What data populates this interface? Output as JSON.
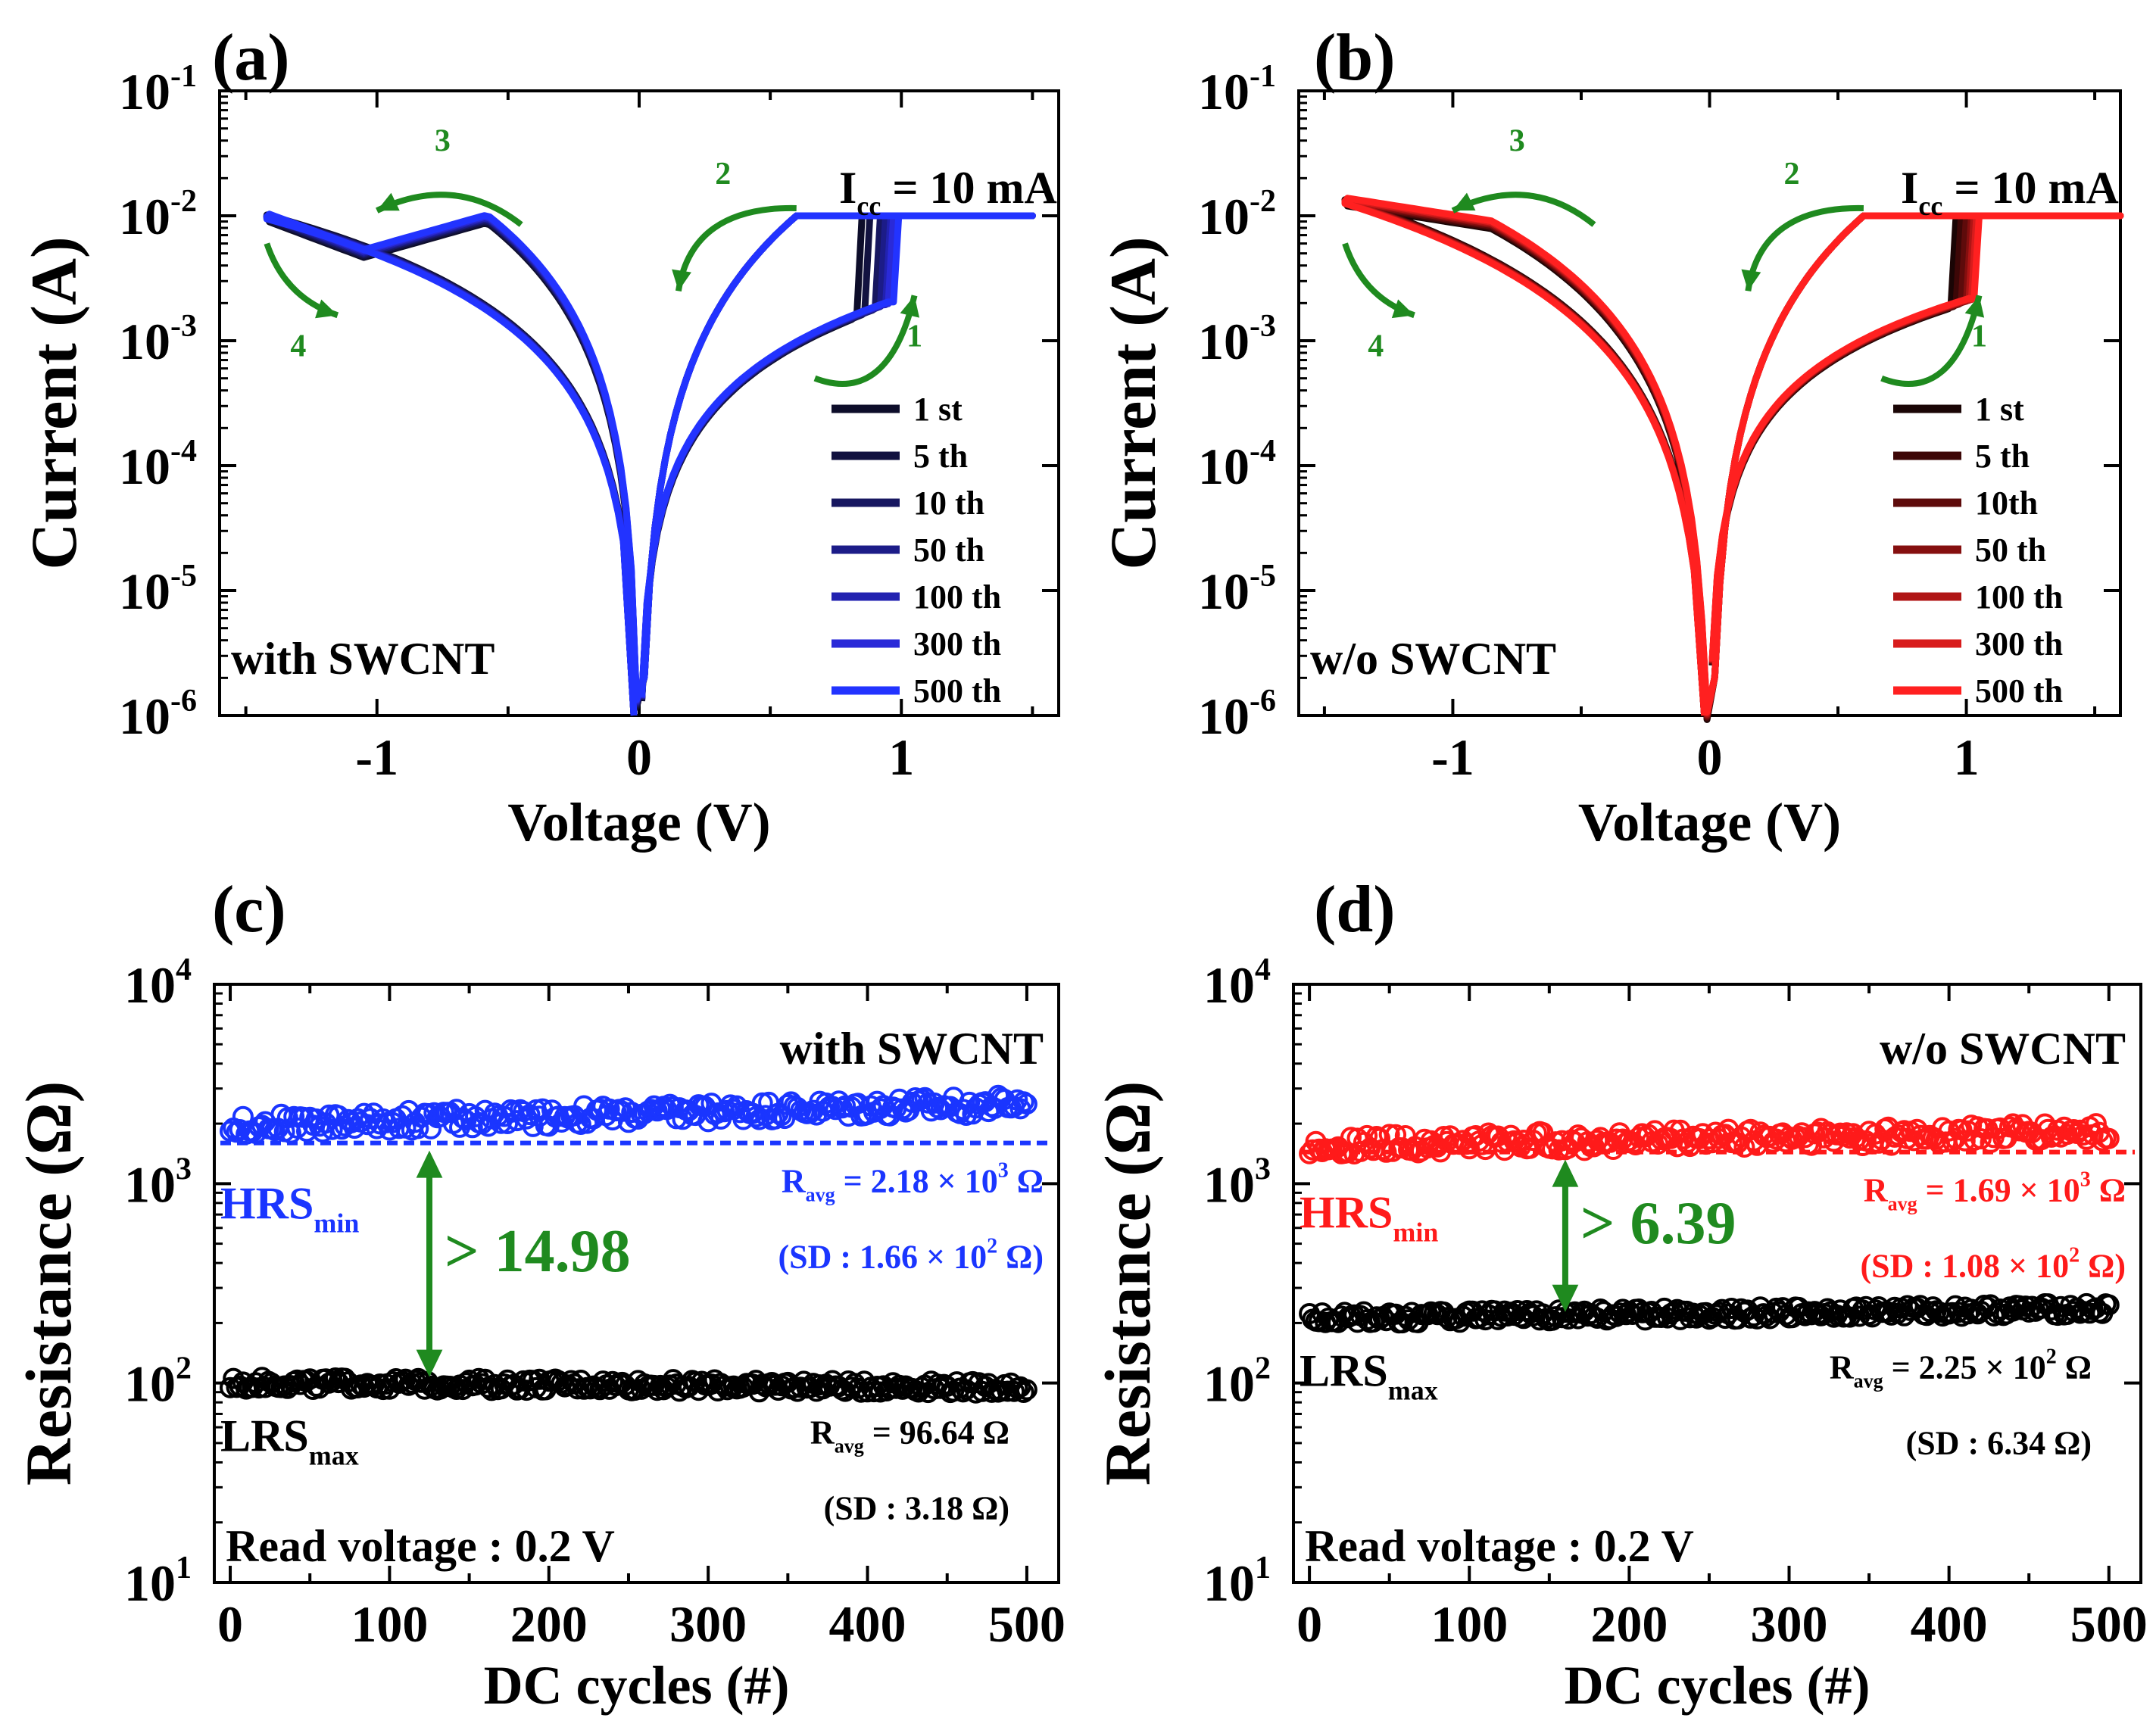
{
  "chart_data": [
    {
      "panel": "(a)",
      "type": "line",
      "xlabel": "Voltage (V)",
      "ylabel": "Current (A)",
      "xlim": [
        -1.6,
        1.6
      ],
      "ylim_log10": [
        -6,
        -1
      ],
      "x_ticks": [
        "-1",
        "0",
        "1"
      ],
      "y_ticks": [
        {
          "base": "10",
          "exp": "-6"
        },
        {
          "base": "10",
          "exp": "-5"
        },
        {
          "base": "10",
          "exp": "-4"
        },
        {
          "base": "10",
          "exp": "-3"
        },
        {
          "base": "10",
          "exp": "-2"
        },
        {
          "base": "10",
          "exp": "-1"
        }
      ],
      "compliance": {
        "prefix": "I",
        "sub": "cc",
        "rest": " = 10 mA"
      },
      "sample_label": "with SWCNT",
      "legend_labels": [
        "1 st",
        "5 th",
        "10 th",
        "50 th",
        "100 th",
        "300 th",
        "500 th"
      ],
      "series_colors": [
        "#0d0d2a",
        "#121240",
        "#171760",
        "#1c1c88",
        "#2222b0",
        "#2a2ad8",
        "#2233ff"
      ],
      "set_voltages": [
        0.83,
        0.86,
        0.9,
        0.92,
        0.94,
        0.95,
        0.97
      ],
      "hrs_exponent": 1.6,
      "hrs_i_at_0p8V": 0.0015,
      "lrs_peak": {
        "v": -0.58,
        "i": 0.0095
      },
      "lrs_dip": {
        "v": -1.05,
        "i": 0.005
      },
      "neg_end": {
        "v": -1.42,
        "i": 0.0098
      },
      "neg_min_i": 1.8e-05,
      "compliance_a": 0.01,
      "sweep_max_v": 1.5,
      "arrow_labels": [
        "1",
        "2",
        "3",
        "4"
      ]
    },
    {
      "panel": "(b)",
      "type": "line",
      "xlabel": "Voltage (V)",
      "ylabel": "Current (A)",
      "xlim": [
        -1.6,
        1.6
      ],
      "ylim_log10": [
        -6,
        -1
      ],
      "x_ticks": [
        "-1",
        "0",
        "1"
      ],
      "y_ticks": [
        {
          "base": "10",
          "exp": "-6"
        },
        {
          "base": "10",
          "exp": "-5"
        },
        {
          "base": "10",
          "exp": "-4"
        },
        {
          "base": "10",
          "exp": "-3"
        },
        {
          "base": "10",
          "exp": "-2"
        },
        {
          "base": "10",
          "exp": "-1"
        }
      ],
      "compliance": {
        "prefix": "I",
        "sub": "cc",
        "rest": " = 10 mA"
      },
      "sample_label": "w/o SWCNT",
      "legend_labels": [
        "1 st",
        "5 th",
        "10th",
        "50 th",
        "100 th",
        "300 th",
        "500 th"
      ],
      "series_colors": [
        "#1a0505",
        "#3d0707",
        "#5e0b0b",
        "#850f0f",
        "#b01515",
        "#d81c1c",
        "#ff2020"
      ],
      "set_voltages": [
        0.94,
        0.96,
        0.98,
        1.0,
        1.01,
        1.02,
        1.03
      ],
      "hrs_exponent": 1.45,
      "hrs_i_at_0p8V": 0.0015,
      "lrs_peak": {
        "v": -0.85,
        "i": 0.0085
      },
      "lrs_dip": null,
      "neg_end": {
        "v": -1.42,
        "i": 0.013
      },
      "neg_min_i": 1e-05,
      "compliance_a": 0.01,
      "sweep_max_v": 1.6,
      "arrow_labels": [
        "1",
        "2",
        "3",
        "4"
      ]
    },
    {
      "panel": "(c)",
      "type": "scatter",
      "xlabel": "DC cycles (#)",
      "ylabel": "Resistance (Ω)",
      "xlim": [
        -10,
        520
      ],
      "ylim_log10": [
        1,
        4
      ],
      "x_ticks": [
        "0",
        "100",
        "200",
        "300",
        "400",
        "500"
      ],
      "y_ticks": [
        {
          "base": "10",
          "exp": "1"
        },
        {
          "base": "10",
          "exp": "2"
        },
        {
          "base": "10",
          "exp": "3"
        },
        {
          "base": "10",
          "exp": "4"
        }
      ],
      "sample_label": "with SWCNT",
      "hrs": {
        "name": "HRS",
        "sub": "min",
        "color": "#1a35ff",
        "avg_ohm": 2180,
        "min_line_ohm": 1600,
        "start_ohm": 1950,
        "end_ohm": 2500,
        "jitter": 0.05,
        "ravg": {
          "prefix": "R",
          "sub": "avg",
          "mid": " = 2.18 × 10",
          "sup": "3",
          "unit": " Ω"
        },
        "sd": {
          "text": "(SD : 1.66 × 10",
          "sup": "2",
          "unit": " Ω)"
        }
      },
      "lrs": {
        "name": "LRS",
        "sub": "max",
        "color": "#000000",
        "avg_ohm": 96.64,
        "start_ohm": 100,
        "end_ohm": 95,
        "jitter": 0.03,
        "ravg": {
          "prefix": "R",
          "sub": "avg",
          "mid": " = 96.64 Ω",
          "sup": "",
          "unit": ""
        },
        "sd": {
          "text": "(SD : 3.18 Ω)",
          "sup": "",
          "unit": ""
        }
      },
      "ratio_text": "> 14.98",
      "read_voltage": "Read voltage : 0.2 V",
      "arrow_cycle": 125,
      "cycles": 500
    },
    {
      "panel": "(d)",
      "type": "scatter",
      "xlabel": "DC cycles (#)",
      "ylabel": "Resistance (Ω)",
      "xlim": [
        -10,
        520
      ],
      "ylim_log10": [
        1,
        4
      ],
      "x_ticks": [
        "0",
        "100",
        "200",
        "300",
        "400",
        "500"
      ],
      "y_ticks": [
        {
          "base": "10",
          "exp": "1"
        },
        {
          "base": "10",
          "exp": "2"
        },
        {
          "base": "10",
          "exp": "3"
        },
        {
          "base": "10",
          "exp": "4"
        }
      ],
      "sample_label": "w/o SWCNT",
      "hrs": {
        "name": "HRS",
        "sub": "min",
        "color": "#ff1a1a",
        "avg_ohm": 1690,
        "min_line_ohm": 1440,
        "start_ohm": 1550,
        "end_ohm": 1820,
        "jitter": 0.05,
        "ravg": {
          "prefix": "R",
          "sub": "avg",
          "mid": " = 1.69 × 10",
          "sup": "3",
          "unit": " Ω"
        },
        "sd": {
          "text": "(SD : 1.08 × 10",
          "sup": "2",
          "unit": " Ω)"
        }
      },
      "lrs": {
        "name": "LRS",
        "sub": "max",
        "color": "#000000",
        "avg_ohm": 225,
        "start_ohm": 212,
        "end_ohm": 235,
        "jitter": 0.03,
        "ravg": {
          "prefix": "R",
          "sub": "avg",
          "mid": " = 2.25 × 10",
          "sup": "2",
          "unit": " Ω"
        },
        "sd": {
          "text": "(SD : 6.34 Ω)",
          "sup": "",
          "unit": ""
        }
      },
      "ratio_text": "> 6.39",
      "read_voltage": "Read voltage : 0.2 V",
      "arrow_cycle": 160,
      "cycles": 500
    }
  ]
}
